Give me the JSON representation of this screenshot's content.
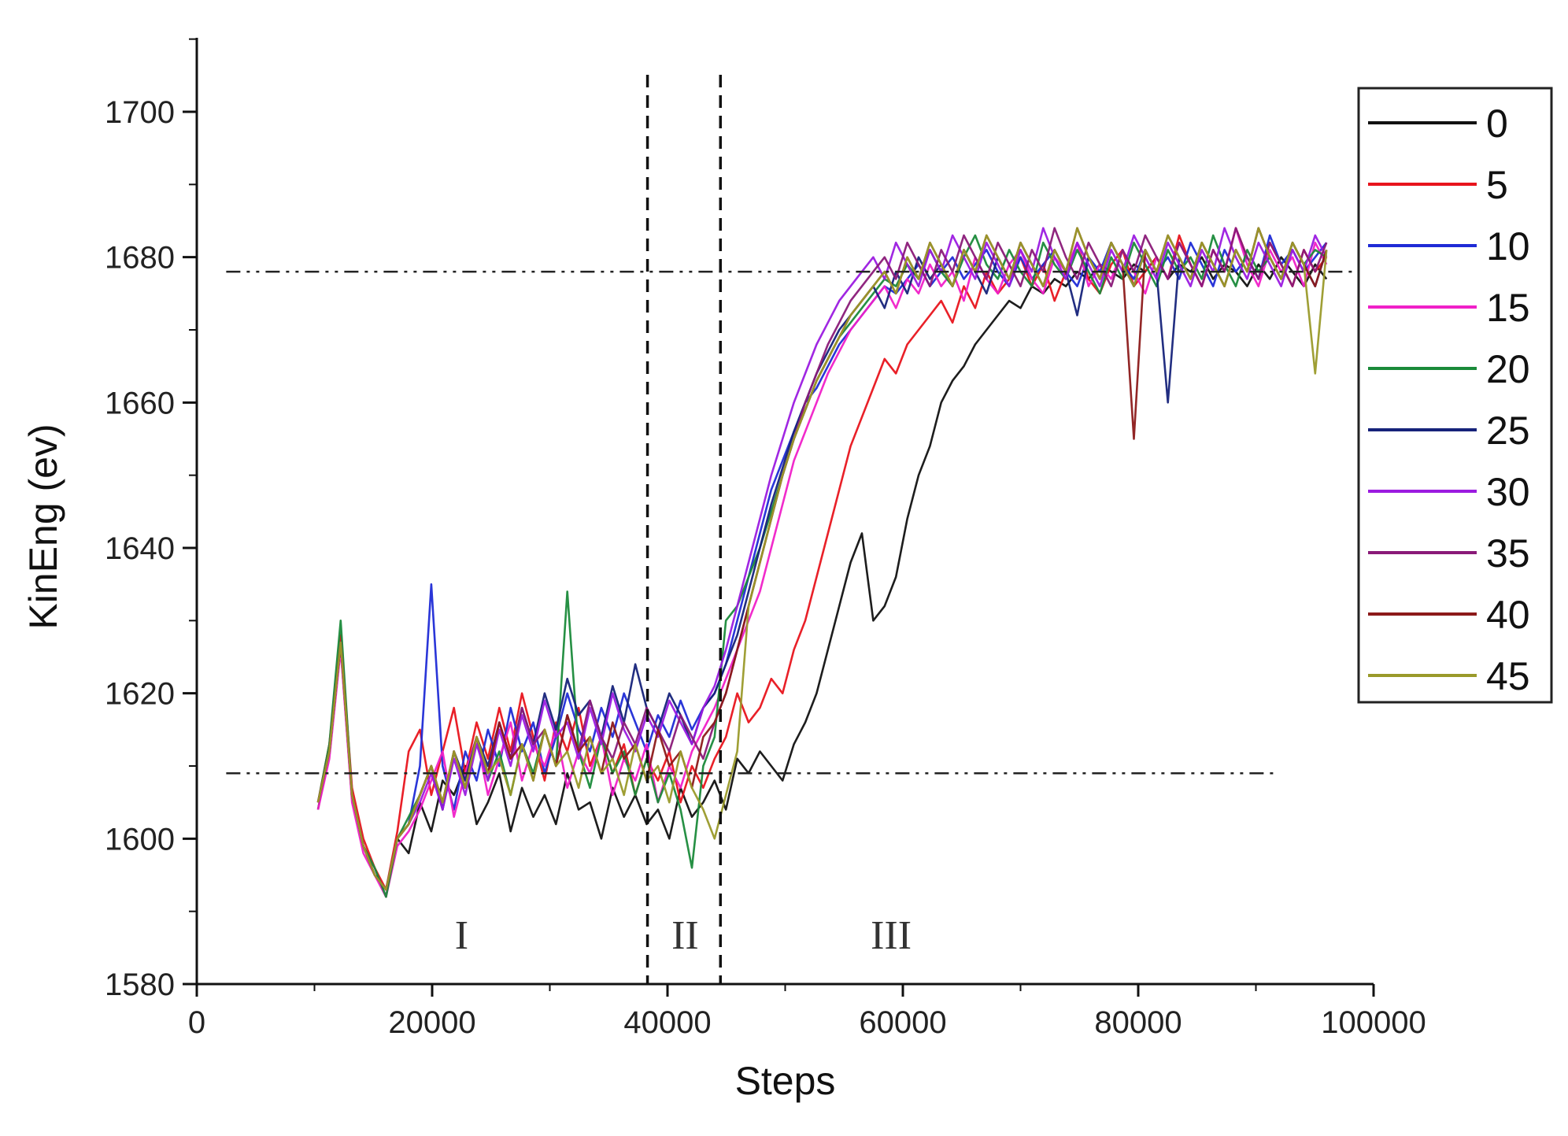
{
  "chart_data": {
    "type": "line",
    "title": "",
    "xlabel": "Steps",
    "ylabel": "KinEng (ev)",
    "xlim": [
      0,
      100000
    ],
    "ylim": [
      1580,
      1710
    ],
    "x_ticks": [
      "0",
      "20000",
      "40000",
      "60000",
      "80000",
      "100000"
    ],
    "y_ticks": [
      "1580",
      "1600",
      "1620",
      "1640",
      "1660",
      "1680",
      "1700"
    ],
    "grid": false,
    "legend_position": "right-top",
    "reference_lines": {
      "upper": 1678,
      "lower": 1609
    },
    "region_boundaries": [
      38300,
      44500
    ],
    "regions": [
      "I",
      "II",
      "III"
    ],
    "series": [
      {
        "name": "0",
        "color": "#111111",
        "phase_start": 45500,
        "values": [
          1604,
          1612,
          1628,
          1606,
          1599,
          1596,
          1592,
          1600,
          1598,
          1605,
          1601,
          1608,
          1606,
          1610,
          1602,
          1605,
          1609,
          1601,
          1607,
          1603,
          1606,
          1602,
          1609,
          1604,
          1605,
          1600,
          1607,
          1603,
          1606,
          1602,
          1604,
          1600,
          1607,
          1603,
          1605,
          1608,
          1604,
          1611,
          1609,
          1612,
          1610,
          1608,
          1613,
          1616,
          1620,
          1626,
          1632,
          1638,
          1642,
          1630,
          1632,
          1636,
          1644,
          1650,
          1654,
          1660,
          1663,
          1665,
          1668,
          1670,
          1672,
          1674,
          1673,
          1676,
          1675,
          1677,
          1676,
          1678,
          1677,
          1679,
          1678,
          1677,
          1679,
          1678,
          1680,
          1677,
          1679,
          1678,
          1680,
          1677,
          1679,
          1678,
          1676,
          1679,
          1677,
          1680,
          1678,
          1676,
          1679,
          1677
        ]
      },
      {
        "name": "5",
        "color": "#e8141c",
        "phase_start": 44000,
        "values": [
          1605,
          1613,
          1628,
          1607,
          1600,
          1596,
          1593,
          1601,
          1612,
          1615,
          1606,
          1612,
          1618,
          1609,
          1616,
          1611,
          1618,
          1612,
          1620,
          1614,
          1608,
          1616,
          1612,
          1618,
          1610,
          1614,
          1609,
          1613,
          1606,
          1611,
          1608,
          1612,
          1605,
          1610,
          1607,
          1611,
          1614,
          1620,
          1616,
          1618,
          1622,
          1620,
          1626,
          1630,
          1636,
          1642,
          1648,
          1654,
          1658,
          1662,
          1666,
          1664,
          1668,
          1670,
          1672,
          1674,
          1671,
          1676,
          1673,
          1678,
          1675,
          1677,
          1680,
          1676,
          1679,
          1674,
          1678,
          1682,
          1677,
          1675,
          1679,
          1681,
          1676,
          1678,
          1680,
          1677,
          1683,
          1679,
          1676,
          1681,
          1678,
          1684,
          1680,
          1677,
          1682,
          1679,
          1676,
          1681,
          1678,
          1680
        ]
      },
      {
        "name": "10",
        "color": "#1f2bd6",
        "phase_start": 42000,
        "values": [
          1605,
          1612,
          1627,
          1606,
          1599,
          1595,
          1593,
          1600,
          1602,
          1610,
          1635,
          1610,
          1604,
          1612,
          1608,
          1615,
          1610,
          1618,
          1612,
          1616,
          1609,
          1614,
          1620,
          1615,
          1612,
          1618,
          1614,
          1620,
          1616,
          1612,
          1617,
          1614,
          1619,
          1615,
          1618,
          1620,
          1624,
          1630,
          1636,
          1642,
          1648,
          1652,
          1656,
          1660,
          1662,
          1665,
          1668,
          1670,
          1672,
          1674,
          1676,
          1675,
          1677,
          1679,
          1676,
          1678,
          1680,
          1677,
          1679,
          1681,
          1678,
          1676,
          1680,
          1677,
          1679,
          1681,
          1678,
          1676,
          1680,
          1678,
          1682,
          1679,
          1677,
          1681,
          1678,
          1680,
          1677,
          1682,
          1679,
          1676,
          1681,
          1678,
          1680,
          1677,
          1683,
          1679,
          1681,
          1678,
          1680,
          1682
        ]
      },
      {
        "name": "15",
        "color": "#f020c8",
        "phase_start": 43000,
        "values": [
          1604,
          1611,
          1626,
          1605,
          1598,
          1595,
          1592,
          1599,
          1601,
          1604,
          1608,
          1612,
          1603,
          1609,
          1614,
          1606,
          1611,
          1616,
          1608,
          1613,
          1610,
          1615,
          1607,
          1612,
          1609,
          1614,
          1606,
          1611,
          1608,
          1613,
          1605,
          1610,
          1607,
          1612,
          1615,
          1618,
          1622,
          1626,
          1630,
          1634,
          1640,
          1646,
          1652,
          1656,
          1660,
          1664,
          1667,
          1670,
          1672,
          1674,
          1676,
          1673,
          1677,
          1675,
          1679,
          1676,
          1678,
          1674,
          1680,
          1677,
          1675,
          1679,
          1681,
          1677,
          1675,
          1680,
          1678,
          1682,
          1676,
          1679,
          1677,
          1681,
          1678,
          1675,
          1680,
          1677,
          1682,
          1679,
          1676,
          1681,
          1678,
          1684,
          1679,
          1676,
          1681,
          1678,
          1680,
          1676,
          1682,
          1679
        ]
      },
      {
        "name": "20",
        "color": "#1a8a3a",
        "phase_start": 41000,
        "values": [
          1605,
          1613,
          1630,
          1606,
          1599,
          1596,
          1592,
          1600,
          1603,
          1606,
          1610,
          1604,
          1612,
          1607,
          1614,
          1608,
          1612,
          1606,
          1613,
          1609,
          1615,
          1610,
          1634,
          1612,
          1607,
          1614,
          1609,
          1612,
          1606,
          1611,
          1605,
          1609,
          1604,
          1596,
          1610,
          1614,
          1630,
          1632,
          1636,
          1640,
          1645,
          1650,
          1655,
          1659,
          1663,
          1666,
          1669,
          1671,
          1673,
          1675,
          1677,
          1676,
          1679,
          1677,
          1681,
          1678,
          1676,
          1680,
          1683,
          1679,
          1677,
          1681,
          1678,
          1676,
          1682,
          1679,
          1677,
          1681,
          1678,
          1675,
          1680,
          1677,
          1682,
          1679,
          1676,
          1681,
          1678,
          1680,
          1677,
          1683,
          1679,
          1676,
          1681,
          1678,
          1680,
          1677,
          1682,
          1679,
          1681,
          1680
        ]
      },
      {
        "name": "25",
        "color": "#16237a",
        "phase_start": 42500,
        "values": [
          1605,
          1612,
          1627,
          1606,
          1599,
          1595,
          1593,
          1600,
          1602,
          1606,
          1610,
          1604,
          1612,
          1608,
          1614,
          1610,
          1616,
          1611,
          1618,
          1613,
          1620,
          1615,
          1622,
          1617,
          1619,
          1614,
          1621,
          1616,
          1624,
          1618,
          1615,
          1620,
          1617,
          1613,
          1618,
          1620,
          1624,
          1628,
          1634,
          1640,
          1646,
          1651,
          1656,
          1660,
          1664,
          1667,
          1670,
          1672,
          1674,
          1676,
          1673,
          1678,
          1675,
          1680,
          1677,
          1679,
          1676,
          1681,
          1678,
          1675,
          1680,
          1677,
          1682,
          1679,
          1676,
          1681,
          1678,
          1672,
          1680,
          1677,
          1682,
          1679,
          1676,
          1681,
          1678,
          1660,
          1680,
          1677,
          1682,
          1679,
          1676,
          1681,
          1678,
          1684,
          1680,
          1677,
          1682,
          1679,
          1676,
          1681
        ]
      },
      {
        "name": "30",
        "color": "#9b1be0",
        "phase_start": 41500,
        "values": [
          1605,
          1612,
          1627,
          1606,
          1599,
          1595,
          1593,
          1600,
          1602,
          1605,
          1609,
          1604,
          1611,
          1606,
          1613,
          1608,
          1615,
          1610,
          1617,
          1612,
          1619,
          1614,
          1616,
          1611,
          1618,
          1613,
          1620,
          1615,
          1612,
          1617,
          1614,
          1619,
          1616,
          1613,
          1618,
          1621,
          1626,
          1632,
          1638,
          1644,
          1650,
          1655,
          1660,
          1664,
          1668,
          1671,
          1674,
          1676,
          1678,
          1680,
          1677,
          1682,
          1679,
          1676,
          1681,
          1678,
          1683,
          1680,
          1677,
          1682,
          1679,
          1676,
          1681,
          1678,
          1684,
          1680,
          1677,
          1682,
          1679,
          1676,
          1681,
          1678,
          1683,
          1680,
          1677,
          1682,
          1679,
          1676,
          1681,
          1678,
          1684,
          1680,
          1677,
          1682,
          1679,
          1676,
          1681,
          1678,
          1683,
          1680
        ]
      },
      {
        "name": "35",
        "color": "#8a1a78",
        "phase_start": 42000,
        "values": [
          1605,
          1612,
          1627,
          1606,
          1599,
          1595,
          1593,
          1600,
          1602,
          1606,
          1610,
          1605,
          1612,
          1607,
          1614,
          1609,
          1616,
          1611,
          1618,
          1613,
          1615,
          1610,
          1617,
          1612,
          1619,
          1614,
          1611,
          1616,
          1613,
          1618,
          1615,
          1612,
          1617,
          1614,
          1611,
          1616,
          1620,
          1626,
          1632,
          1638,
          1644,
          1650,
          1655,
          1660,
          1664,
          1668,
          1671,
          1674,
          1676,
          1678,
          1680,
          1677,
          1682,
          1679,
          1676,
          1681,
          1678,
          1683,
          1680,
          1677,
          1682,
          1679,
          1676,
          1681,
          1678,
          1684,
          1680,
          1677,
          1682,
          1679,
          1676,
          1681,
          1678,
          1683,
          1680,
          1677,
          1682,
          1679,
          1676,
          1681,
          1678,
          1684,
          1680,
          1677,
          1682,
          1679,
          1676,
          1681,
          1678,
          1682
        ]
      },
      {
        "name": "40",
        "color": "#8c1a1a",
        "phase_start": 42000,
        "values": [
          1605,
          1612,
          1627,
          1606,
          1599,
          1595,
          1593,
          1600,
          1602,
          1606,
          1610,
          1605,
          1612,
          1607,
          1614,
          1609,
          1616,
          1611,
          1613,
          1608,
          1615,
          1610,
          1617,
          1612,
          1614,
          1609,
          1616,
          1611,
          1613,
          1608,
          1615,
          1610,
          1612,
          1607,
          1614,
          1616,
          1620,
          1626,
          1632,
          1638,
          1644,
          1650,
          1655,
          1659,
          1663,
          1666,
          1669,
          1672,
          1674,
          1676,
          1678,
          1675,
          1680,
          1677,
          1682,
          1679,
          1676,
          1681,
          1678,
          1683,
          1680,
          1677,
          1682,
          1679,
          1676,
          1681,
          1678,
          1684,
          1680,
          1677,
          1682,
          1679,
          1655,
          1681,
          1678,
          1683,
          1680,
          1677,
          1682,
          1679,
          1676,
          1681,
          1678,
          1684,
          1680,
          1677,
          1682,
          1679,
          1676,
          1681
        ]
      },
      {
        "name": "45",
        "color": "#9a9a2a",
        "phase_start": 41500,
        "values": [
          1605,
          1612,
          1627,
          1606,
          1599,
          1595,
          1593,
          1600,
          1602,
          1606,
          1610,
          1605,
          1612,
          1607,
          1614,
          1609,
          1611,
          1606,
          1613,
          1608,
          1615,
          1610,
          1612,
          1607,
          1614,
          1609,
          1611,
          1606,
          1613,
          1608,
          1610,
          1605,
          1612,
          1607,
          1604,
          1600,
          1606,
          1612,
          1632,
          1638,
          1644,
          1650,
          1655,
          1659,
          1663,
          1666,
          1669,
          1672,
          1674,
          1676,
          1678,
          1675,
          1680,
          1677,
          1682,
          1679,
          1676,
          1681,
          1678,
          1683,
          1680,
          1677,
          1682,
          1679,
          1676,
          1681,
          1678,
          1684,
          1680,
          1677,
          1682,
          1679,
          1676,
          1681,
          1678,
          1683,
          1680,
          1677,
          1682,
          1679,
          1676,
          1681,
          1678,
          1684,
          1680,
          1677,
          1682,
          1679,
          1664,
          1681
        ]
      }
    ]
  }
}
